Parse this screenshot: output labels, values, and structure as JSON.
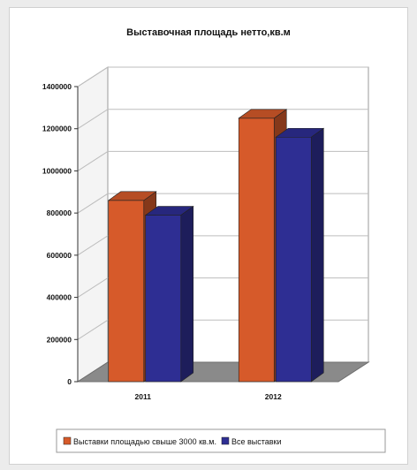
{
  "chart_data": {
    "type": "bar",
    "title": "Выставочная площадь нетто,кв.м",
    "categories": [
      "2011",
      "2012"
    ],
    "series": [
      {
        "name": "Выставки площадью свыше 3000 кв.м.",
        "values": [
          860000,
          1250000
        ],
        "color": "#d65a2a"
      },
      {
        "name": "Все выставки",
        "values": [
          790000,
          1160000
        ],
        "color": "#2e2e93"
      }
    ],
    "ylim": [
      0,
      1400000
    ],
    "yticks": [
      0,
      200000,
      400000,
      600000,
      800000,
      1000000,
      1200000,
      1400000
    ],
    "grid": true,
    "legend_position": "bottom",
    "style": "3d"
  }
}
